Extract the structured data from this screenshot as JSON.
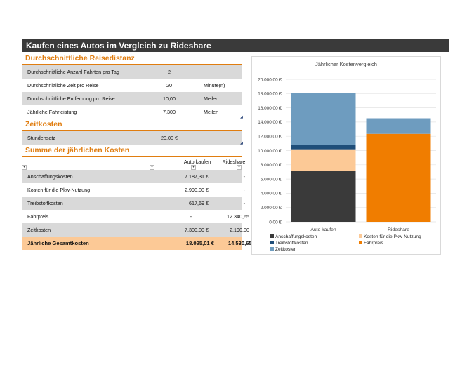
{
  "title": "Kaufen eines Autos im Vergleich zu Rideshare",
  "sections": {
    "distance": "Durchschnittliche Reisedistanz",
    "time": "Zeitkosten",
    "annual": "Summe der jährlichen Kosten"
  },
  "distance_rows": [
    {
      "label": "Durchschnittliche Anzahl Fahrten pro Tag",
      "value": "2",
      "unit": ""
    },
    {
      "label": "Durchschnittliche Zeit pro Reise",
      "value": "20",
      "unit": "Minute(n)"
    },
    {
      "label": "Durchschnittliche Entfernung pro Reise",
      "value": "10,00",
      "unit": "Meilen"
    },
    {
      "label": "Jährliche Fahrleistung",
      "value": "7.300",
      "unit": "Meilen"
    }
  ],
  "time_rows": [
    {
      "label": "Stundensatz",
      "value": "20,00 €"
    }
  ],
  "annual_header": {
    "col1": "Auto kaufen",
    "col2": "Rideshare"
  },
  "annual_rows": [
    {
      "label": "Anschaffungskosten",
      "car": "7.187,31 €",
      "ride": "-"
    },
    {
      "label": "Kosten für die Pkw-Nutzung",
      "car": "2.990,00 €",
      "ride": "-"
    },
    {
      "label": "Treibstoffkosten",
      "car": "617,69 €",
      "ride": "-"
    },
    {
      "label": "Fahrpreis",
      "car": "-",
      "ride": "12.340,65 €"
    },
    {
      "label": "Zeitkosten",
      "car": "7.300,00 €",
      "ride": "2.190,00 €"
    }
  ],
  "annual_total": {
    "label": "Jährliche Gesamtkosten",
    "car": "18.095,01 €",
    "ride": "14.530,65 €"
  },
  "chart_data": {
    "type": "bar",
    "stacked": true,
    "title": "Jährlicher Kostenvergleich",
    "categories": [
      "Auto kaufen",
      "Rideshare"
    ],
    "series": [
      {
        "name": "Anschaffungskosten",
        "values": [
          7187.31,
          0
        ],
        "color": "#3a3a3a"
      },
      {
        "name": "Kosten für die Pkw-Nutzung",
        "values": [
          2990.0,
          0
        ],
        "color": "#fcc996"
      },
      {
        "name": "Treibstoffkosten",
        "values": [
          617.69,
          0
        ],
        "color": "#1f4e79"
      },
      {
        "name": "Fahrpreis",
        "values": [
          0,
          12340.65
        ],
        "color": "#f07d00"
      },
      {
        "name": "Zeitkosten",
        "values": [
          7300.0,
          2190.0
        ],
        "color": "#6e9cbf"
      }
    ],
    "ylim": [
      0,
      20000
    ],
    "yticks": [
      "0,00 €",
      "2.000,00 €",
      "4.000,00 €",
      "6.000,00 €",
      "8.000,00 €",
      "10.000,00 €",
      "12.000,00 €",
      "14.000,00 €",
      "16.000,00 €",
      "18.000,00 €",
      "20.000,00 €"
    ],
    "grid": true,
    "legend_position": "bottom"
  }
}
